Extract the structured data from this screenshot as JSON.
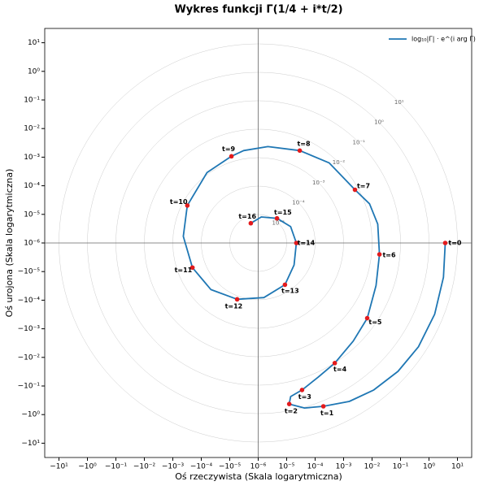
{
  "chart_data": {
    "type": "polar-spiral",
    "title": "Wykres funkcji Γ(1/4 + i*t/2)",
    "xlabel": "Oś rzeczywista (Skala logarytmiczna)",
    "ylabel": "Oś urojona (Skala logarytmiczna)",
    "xlim": [
      -7.5,
      7.5
    ],
    "ylim": [
      -7.5,
      7.5
    ],
    "xticks": [
      {
        "value": -7,
        "label": "−10¹"
      },
      {
        "value": -6,
        "label": "−10⁰"
      },
      {
        "value": -5,
        "label": "−10⁻¹"
      },
      {
        "value": -4,
        "label": "−10⁻²"
      },
      {
        "value": -3,
        "label": "−10⁻³"
      },
      {
        "value": -2,
        "label": "−10⁻⁴"
      },
      {
        "value": -1,
        "label": "−10⁻⁵"
      },
      {
        "value": 0,
        "label": "10⁻⁶"
      },
      {
        "value": 1,
        "label": "10⁻⁵"
      },
      {
        "value": 2,
        "label": "10⁻⁴"
      },
      {
        "value": 3,
        "label": "10⁻³"
      },
      {
        "value": 4,
        "label": "10⁻²"
      },
      {
        "value": 5,
        "label": "10⁻¹"
      },
      {
        "value": 6,
        "label": "10⁰"
      },
      {
        "value": 7,
        "label": "10¹"
      }
    ],
    "yticks": [
      {
        "value": -7,
        "label": "−10¹"
      },
      {
        "value": -6,
        "label": "−10⁰"
      },
      {
        "value": -5,
        "label": "−10⁻¹"
      },
      {
        "value": -4,
        "label": "−10⁻²"
      },
      {
        "value": -3,
        "label": "−10⁻³"
      },
      {
        "value": -2,
        "label": "−10⁻⁴"
      },
      {
        "value": -1,
        "label": "−10⁻⁵"
      },
      {
        "value": 0,
        "label": "10⁻⁶"
      },
      {
        "value": 1,
        "label": "10⁻⁵"
      },
      {
        "value": 2,
        "label": "10⁻⁴"
      },
      {
        "value": 3,
        "label": "10⁻³"
      },
      {
        "value": 4,
        "label": "10⁻²"
      },
      {
        "value": 5,
        "label": "10⁻¹"
      },
      {
        "value": 6,
        "label": "10⁰"
      },
      {
        "value": 7,
        "label": "10¹"
      }
    ],
    "circles": [
      {
        "value": 1,
        "label": "10⁻⁵"
      },
      {
        "value": 2,
        "label": "10⁻⁴"
      },
      {
        "value": 3,
        "label": "10⁻³"
      },
      {
        "value": 4,
        "label": "10⁻²"
      },
      {
        "value": 5,
        "label": "10⁻¹"
      },
      {
        "value": 6,
        "label": "10⁰"
      },
      {
        "value": 7,
        "label": "10¹"
      }
    ],
    "legend": "upper right",
    "series": [
      {
        "name": "log₁₀|Γ| · e^(i arg Γ)",
        "color": "#1f77b4",
        "x": [
          6.57,
          6.51,
          6.2,
          5.63,
          4.91,
          4.06,
          3.2,
          2.29,
          1.63,
          1.09,
          1.14,
          1.54,
          2.11,
          2.69,
          3.34,
          3.83,
          4.14,
          4.26,
          4.2,
          3.91,
          3.4,
          2.49,
          1.46,
          0.34,
          -0.51,
          -0.94,
          -1.8,
          -2.49,
          -2.63,
          -2.31,
          -1.66,
          -0.74,
          0.2,
          0.94,
          1.26,
          1.34,
          1.14,
          0.66,
          0.11,
          -0.26
        ],
        "y": [
          0,
          -1.2,
          -2.49,
          -3.63,
          -4.49,
          -5.14,
          -5.54,
          -5.71,
          -5.77,
          -5.63,
          -5.37,
          -5.14,
          -4.69,
          -4.2,
          -3.43,
          -2.63,
          -1.49,
          -0.4,
          0.66,
          1.37,
          1.86,
          2.8,
          3.23,
          3.37,
          3.23,
          3.03,
          2.46,
          1.31,
          0.23,
          -0.86,
          -1.63,
          -1.97,
          -1.91,
          -1.46,
          -0.77,
          0,
          0.57,
          0.86,
          0.91,
          0.69
        ]
      }
    ],
    "points": {
      "color": "#e31a1c",
      "labels": [
        "t=0",
        "t=1",
        "t=2",
        "t=3",
        "t=4",
        "t=5",
        "t=6",
        "t=7",
        "t=8",
        "t=9",
        "t=10",
        "t=11",
        "t=12",
        "t=13",
        "t=14",
        "t=15",
        "t=16"
      ],
      "x": [
        6.57,
        2.29,
        1.09,
        1.54,
        2.69,
        3.83,
        4.26,
        3.4,
        1.46,
        -0.94,
        -2.49,
        -2.31,
        -0.74,
        0.94,
        1.34,
        0.66,
        -0.26
      ],
      "y": [
        0,
        -5.71,
        -5.63,
        -5.14,
        -4.2,
        -2.63,
        -0.4,
        1.86,
        3.23,
        3.03,
        1.31,
        -0.86,
        -1.97,
        -1.46,
        0,
        0.86,
        0.69
      ]
    }
  }
}
